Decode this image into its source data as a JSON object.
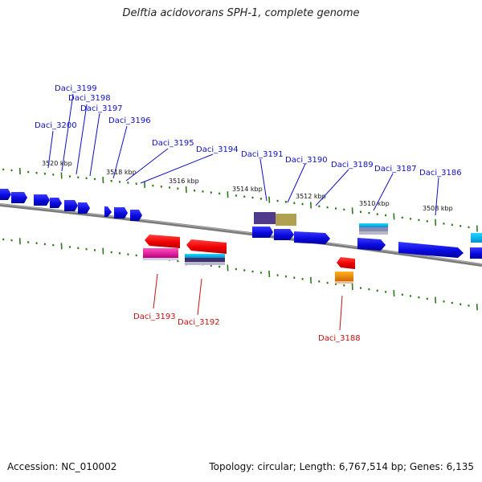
{
  "title": "Delftia acidovorans SPH-1, complete genome",
  "footer": {
    "accession": "Accession: NC_010002",
    "info": "Topology: circular; Length: 6,767,514 bp; Genes: 6,135"
  },
  "colors": {
    "forward_gene": "#1010e0",
    "reverse_gene": "#e81010",
    "forward_label": "#1010c0",
    "reverse_label": "#c01010",
    "backbone": "#808080",
    "tick": "#2a7a1a"
  },
  "kbp_labels": [
    "3520 kbp",
    "3518 kbp",
    "3516 kbp",
    "3514 kbp",
    "3512 kbp",
    "3510 kbp",
    "3508 kbp"
  ],
  "forward_labels": [
    "Daci_3199",
    "Daci_3198",
    "Daci_3197",
    "Daci_3200",
    "Daci_3196",
    "Daci_3195",
    "Daci_3194",
    "Daci_3191",
    "Daci_3190",
    "Daci_3189",
    "Daci_3187",
    "Daci_3186"
  ],
  "reverse_labels": [
    "Daci_3193",
    "Daci_3192",
    "Daci_3188"
  ]
}
